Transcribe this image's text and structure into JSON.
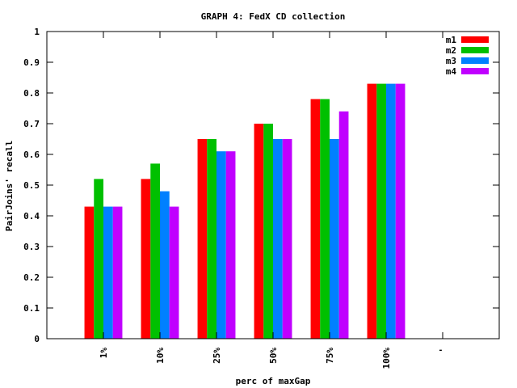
{
  "chart_data": {
    "type": "bar",
    "title": "GRAPH 4: FedX CD collection",
    "xlabel": "perc of maxGap",
    "ylabel": "PairJoins' recall",
    "categories": [
      "1%",
      "10%",
      "25%",
      "50%",
      "75%",
      "100%",
      "'"
    ],
    "ylim": [
      0,
      1
    ],
    "yticks": [
      "0",
      "0.1",
      "0.2",
      "0.3",
      "0.4",
      "0.5",
      "0.6",
      "0.7",
      "0.8",
      "0.9",
      "1"
    ],
    "legend_position": "top-right",
    "grid": false,
    "series": [
      {
        "name": "m1",
        "color": "#ff0000",
        "values": [
          0.43,
          0.52,
          0.65,
          0.7,
          0.78,
          0.83,
          null
        ]
      },
      {
        "name": "m2",
        "color": "#00c000",
        "values": [
          0.52,
          0.57,
          0.65,
          0.7,
          0.78,
          0.83,
          null
        ]
      },
      {
        "name": "m3",
        "color": "#0080ff",
        "values": [
          0.43,
          0.48,
          0.61,
          0.65,
          0.65,
          0.83,
          null
        ]
      },
      {
        "name": "m4",
        "color": "#c000ff",
        "values": [
          0.43,
          0.43,
          0.61,
          0.65,
          0.74,
          0.83,
          null
        ]
      }
    ]
  }
}
